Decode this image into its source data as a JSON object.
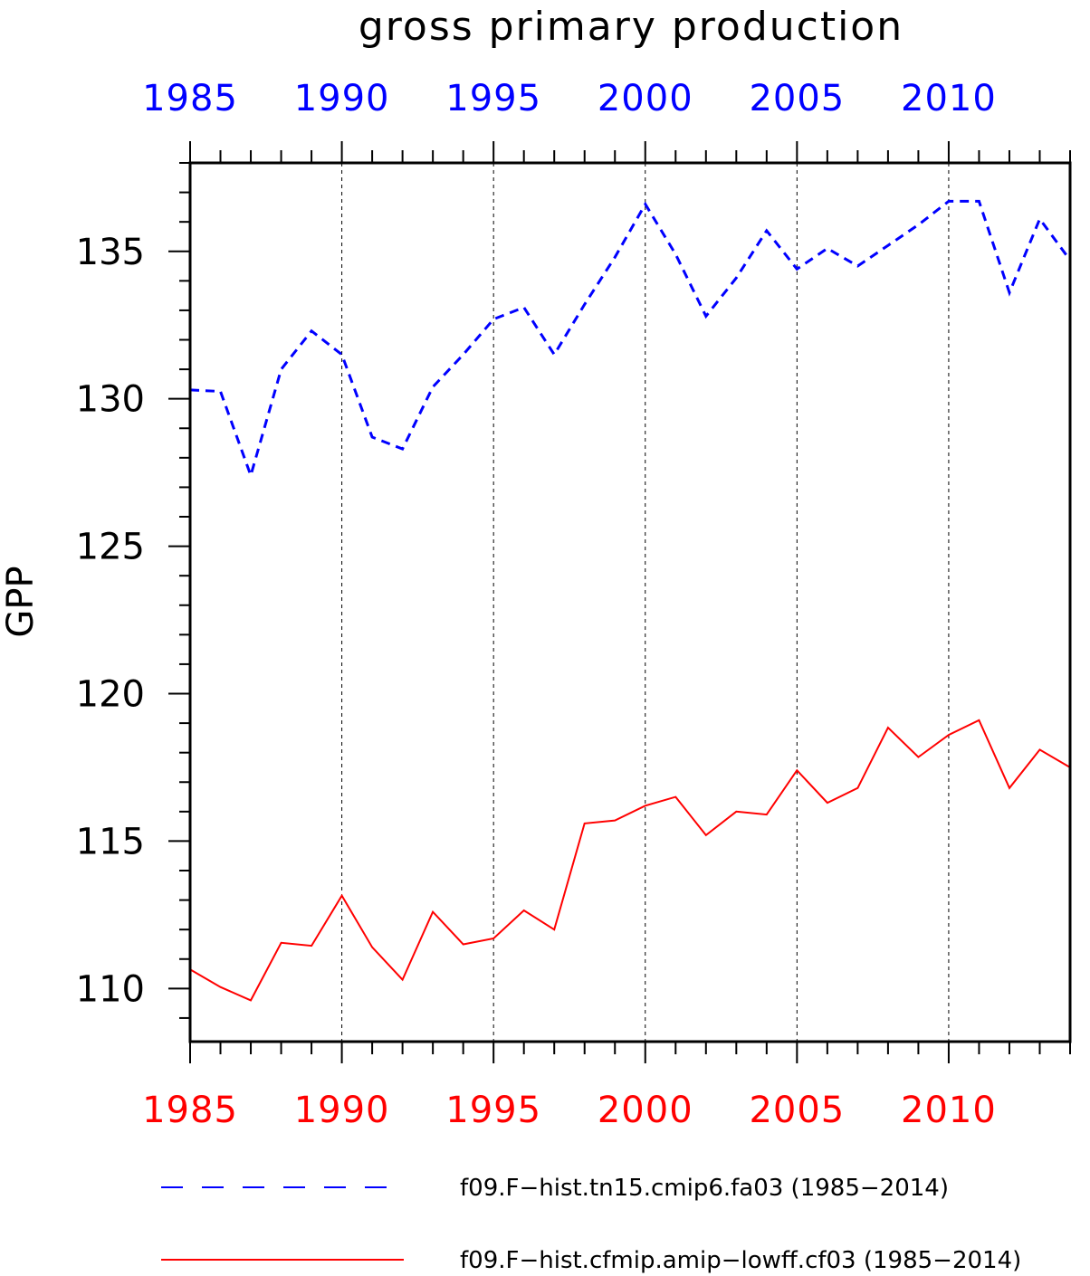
{
  "chart_data": {
    "type": "line",
    "title": "gross primary production",
    "ylabel": "GPP",
    "xlabel": "",
    "xlim": [
      1985,
      2014
    ],
    "ylim": [
      108.2,
      138.0
    ],
    "x_ticks_major": [
      1985,
      1990,
      1995,
      2000,
      2005,
      2010
    ],
    "x_tick_labels": [
      "1985",
      "1990",
      "1995",
      "2000",
      "2005",
      "2010"
    ],
    "y_ticks_major": [
      110,
      115,
      120,
      125,
      130,
      135
    ],
    "y_tick_labels": [
      "110",
      "115",
      "120",
      "125",
      "130",
      "135"
    ],
    "grid": "vertical dashed at major x ticks",
    "legend_position": "bottom",
    "colors": {
      "top_axis": "#0000ff",
      "bottom_axis": "#ff0000",
      "frame": "#000000"
    },
    "x": [
      1985,
      1986,
      1987,
      1988,
      1989,
      1990,
      1991,
      1992,
      1993,
      1994,
      1995,
      1996,
      1997,
      1998,
      1999,
      2000,
      2001,
      2002,
      2003,
      2004,
      2005,
      2006,
      2007,
      2008,
      2009,
      2010,
      2011,
      2012,
      2013,
      2014
    ],
    "series": [
      {
        "name": "f09.F−hist.tn15.cmip6.fa03 (1985−2014)",
        "color": "#0000ff",
        "style": "dashed",
        "values": [
          130.3,
          130.25,
          127.4,
          131.0,
          132.3,
          131.5,
          128.7,
          128.3,
          130.4,
          131.5,
          132.7,
          133.1,
          131.5,
          133.2,
          134.8,
          136.6,
          134.9,
          132.8,
          134.1,
          135.7,
          134.4,
          135.1,
          134.5,
          135.2,
          135.9,
          136.7,
          136.7,
          133.6,
          136.1,
          134.7
        ]
      },
      {
        "name": "f09.F−hist.cfmip.amip−lowff.cf03 (1985−2014)",
        "color": "#ff0000",
        "style": "solid",
        "values": [
          110.65,
          110.05,
          109.6,
          111.55,
          111.45,
          113.15,
          111.4,
          110.3,
          112.6,
          111.5,
          111.7,
          112.65,
          112.0,
          115.6,
          115.7,
          116.2,
          116.5,
          115.2,
          116.0,
          115.9,
          117.4,
          116.3,
          116.8,
          118.85,
          117.85,
          118.6,
          119.1,
          116.8,
          118.1,
          117.5
        ]
      }
    ]
  }
}
